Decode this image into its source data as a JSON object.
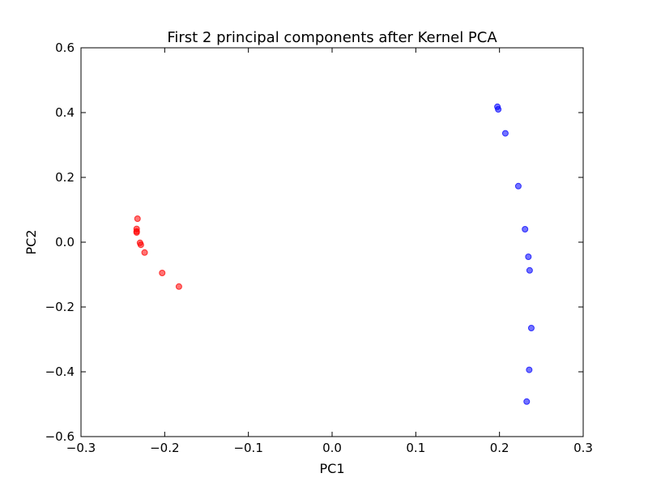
{
  "chart_data": {
    "type": "scatter",
    "title": "First 2 principal components after Kernel PCA",
    "xlabel": "PC1",
    "ylabel": "PC2",
    "xlim": [
      -0.3,
      0.3
    ],
    "ylim": [
      -0.6,
      0.6
    ],
    "x_ticks": [
      "−0.3",
      "−0.2",
      "−0.1",
      "0.0",
      "0.1",
      "0.2",
      "0.3"
    ],
    "y_ticks": [
      "0.6",
      "0.4",
      "0.2",
      "0.0",
      "−0.2",
      "−0.4",
      "−0.6"
    ],
    "x_tick_values": [
      -0.3,
      -0.2,
      -0.1,
      0.0,
      0.1,
      0.2,
      0.3
    ],
    "y_tick_values": [
      0.6,
      0.4,
      0.2,
      0.0,
      -0.2,
      -0.4,
      -0.6
    ],
    "grid": false,
    "series": [
      {
        "color": "#ff0000",
        "points": [
          {
            "x": -0.2325,
            "y": 0.0725
          },
          {
            "x": -0.2335,
            "y": 0.041
          },
          {
            "x": -0.2335,
            "y": 0.0335
          },
          {
            "x": -0.2335,
            "y": 0.03
          },
          {
            "x": -0.2295,
            "y": -0.002
          },
          {
            "x": -0.2285,
            "y": -0.008
          },
          {
            "x": -0.224,
            "y": -0.032
          },
          {
            "x": -0.203,
            "y": -0.095
          },
          {
            "x": -0.183,
            "y": -0.137
          }
        ]
      },
      {
        "color": "#0000ff",
        "points": [
          {
            "x": 0.1975,
            "y": 0.418
          },
          {
            "x": 0.1985,
            "y": 0.41
          },
          {
            "x": 0.207,
            "y": 0.336
          },
          {
            "x": 0.2225,
            "y": 0.173
          },
          {
            "x": 0.2305,
            "y": 0.04
          },
          {
            "x": 0.2345,
            "y": -0.045
          },
          {
            "x": 0.236,
            "y": -0.087
          },
          {
            "x": 0.238,
            "y": -0.265
          },
          {
            "x": 0.2355,
            "y": -0.394
          },
          {
            "x": 0.2325,
            "y": -0.492
          }
        ]
      }
    ]
  }
}
